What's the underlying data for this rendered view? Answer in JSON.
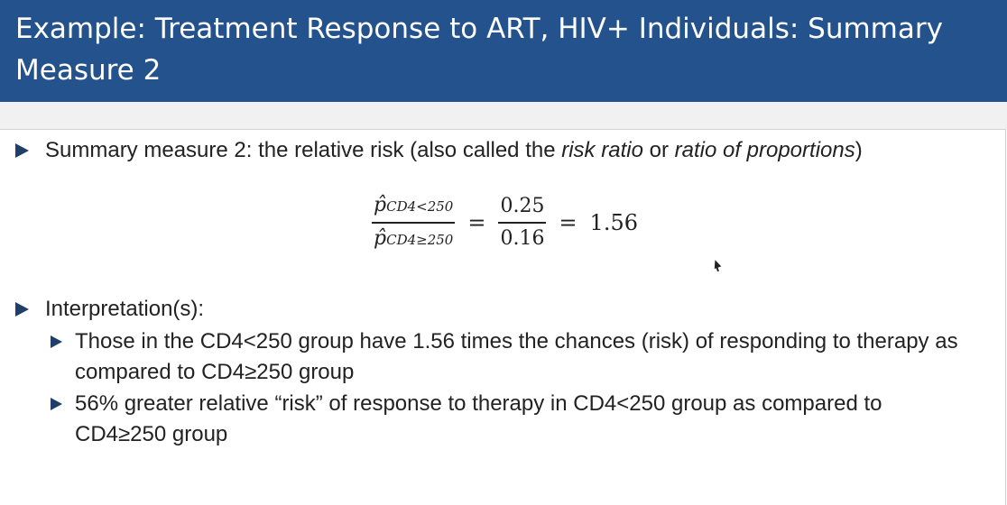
{
  "header": {
    "title": "Example: Treatment Response to ART, HIV+ Individuals: Summary Measure 2"
  },
  "bullets": {
    "summary": {
      "prefix": "Summary measure 2: the relative risk (also called the ",
      "italic1": "risk ratio",
      "middle": " or ",
      "italic2": "ratio of proportions",
      "suffix": ")"
    },
    "interpretation_label": "Interpretation(s):",
    "sub_items": [
      {
        "text": "Those in the CD4<250 group have 1.56 times the chances (risk) of responding to therapy as compared to CD4≥250 group"
      },
      {
        "text": "56% greater relative “risk” of response to therapy in CD4<250 group as compared to CD4≥250 group"
      }
    ]
  },
  "formula": {
    "numerator_symbol": "p̂",
    "numerator_subscript": "CD4<250",
    "denominator_symbol": "p̂",
    "denominator_subscript": "CD4≥250",
    "equals": "=",
    "value_numerator": "0.25",
    "value_denominator": "0.16",
    "result": "1.56"
  },
  "icons": {
    "bullet": "triangle-right-icon",
    "cursor": "mouse-pointer-icon"
  },
  "colors": {
    "title_bar": "#24528c",
    "title_text": "#ffffff",
    "bullet_arrow": "#1f3f6a",
    "body_text": "#222222"
  }
}
